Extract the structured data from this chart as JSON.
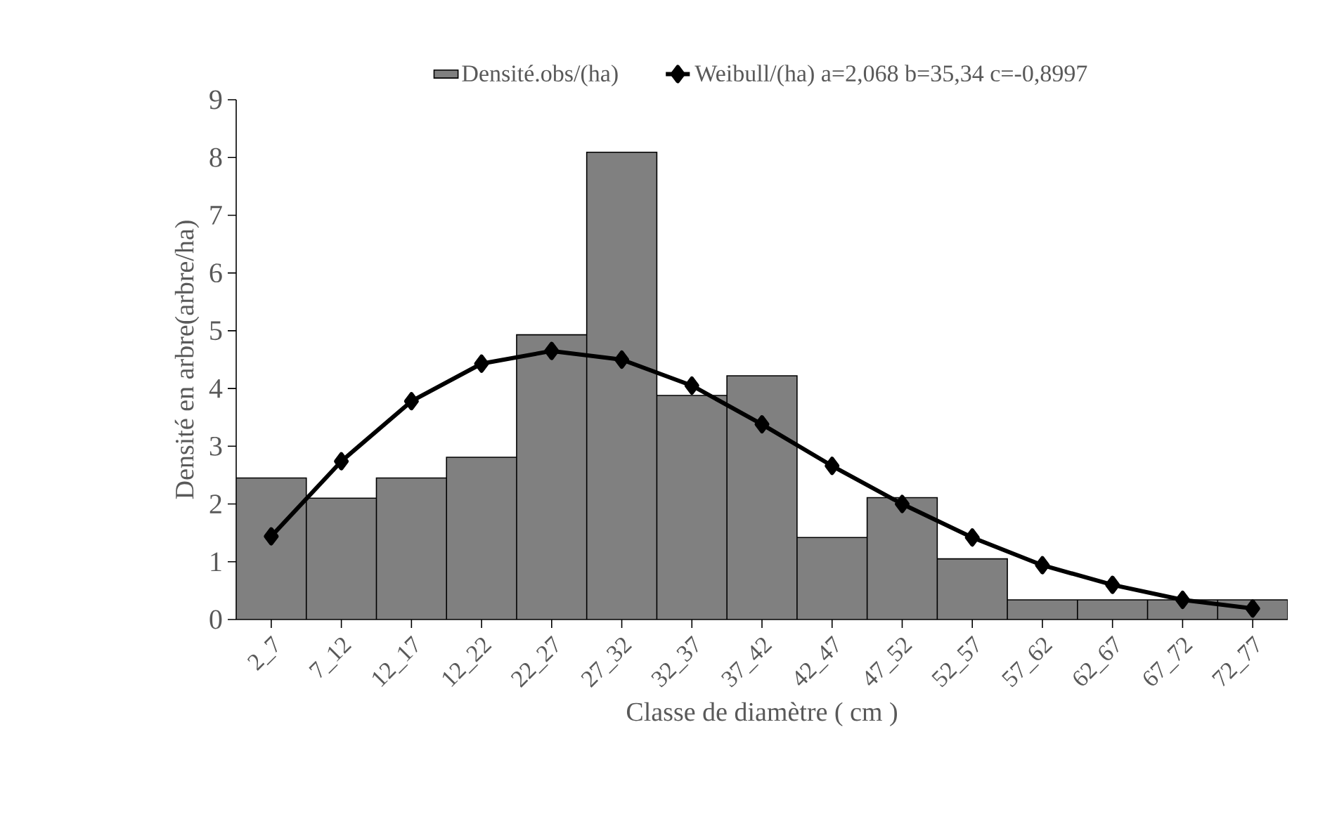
{
  "chart_data": {
    "type": "bar",
    "xlabel": "Classe de diamètre ( cm )",
    "ylabel": "Densité en arbre(arbre/ha)",
    "categories": [
      "2_7",
      "7_12",
      "12_17",
      "12_22",
      "22_27",
      "27_32",
      "32_37",
      "37_42",
      "42_47",
      "47_52",
      "52_57",
      "57_62",
      "62_67",
      "67_72",
      "72_77"
    ],
    "ylim": [
      0,
      9
    ],
    "yticks": [
      0,
      1,
      2,
      3,
      4,
      5,
      6,
      7,
      8,
      9
    ],
    "legend": "top",
    "marker": "diamond",
    "line_style": "solid",
    "series": [
      {
        "name": "Densité.obs/(ha)",
        "color": "#808080",
        "values": [
          2.45,
          2.1,
          2.45,
          2.81,
          4.93,
          8.09,
          3.88,
          4.22,
          1.42,
          2.11,
          1.05,
          0.34,
          0.34,
          0.34,
          0.34
        ]
      },
      {
        "name": "Weibull/(ha) a=2,068 b=35,34 c=-0,8997",
        "type": "line",
        "color": "#000000",
        "values": [
          1.44,
          2.74,
          3.78,
          4.43,
          4.65,
          4.5,
          4.05,
          3.38,
          2.66,
          2.0,
          1.42,
          0.94,
          0.6,
          0.34,
          0.19
        ]
      }
    ]
  }
}
